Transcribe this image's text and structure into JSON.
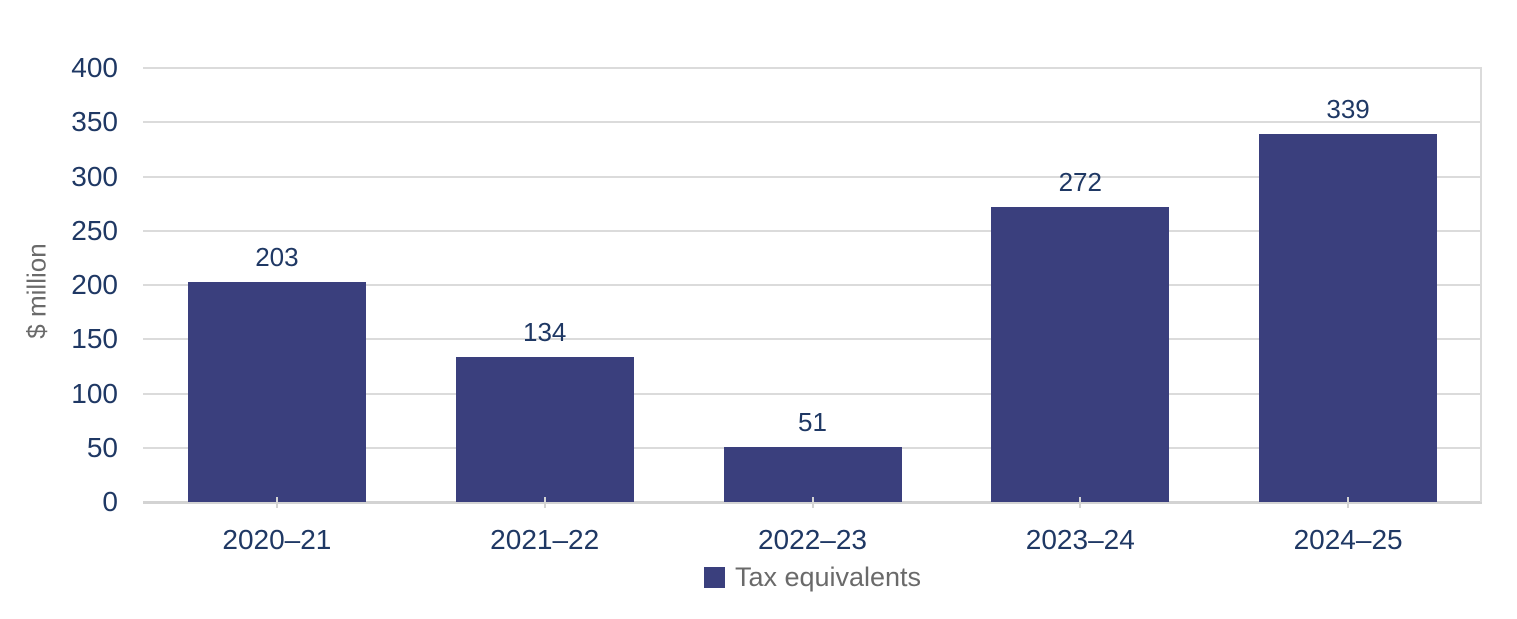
{
  "chart_data": {
    "type": "bar",
    "categories": [
      "2020–21",
      "2021–22",
      "2022–23",
      "2023–24",
      "2024–25"
    ],
    "values": [
      203,
      134,
      51,
      272,
      339
    ],
    "series_name": "Tax equivalents",
    "title": "",
    "xlabel": "",
    "ylabel": "$ million",
    "ylim": [
      0,
      400
    ],
    "ytick_step": 50,
    "grid": "horizontal",
    "legend_position": "bottom",
    "data_labels": true,
    "colors": {
      "bar": "#3a3f7d",
      "data_label": "#1f3864",
      "axis_tick_label": "#1f3864",
      "category_label": "#1f3864",
      "axis_title_text": "#6a6a6a",
      "legend_text": "#6a6a6a",
      "gridline": "#dbdbdb",
      "baseline": "#d3d3d3"
    }
  }
}
